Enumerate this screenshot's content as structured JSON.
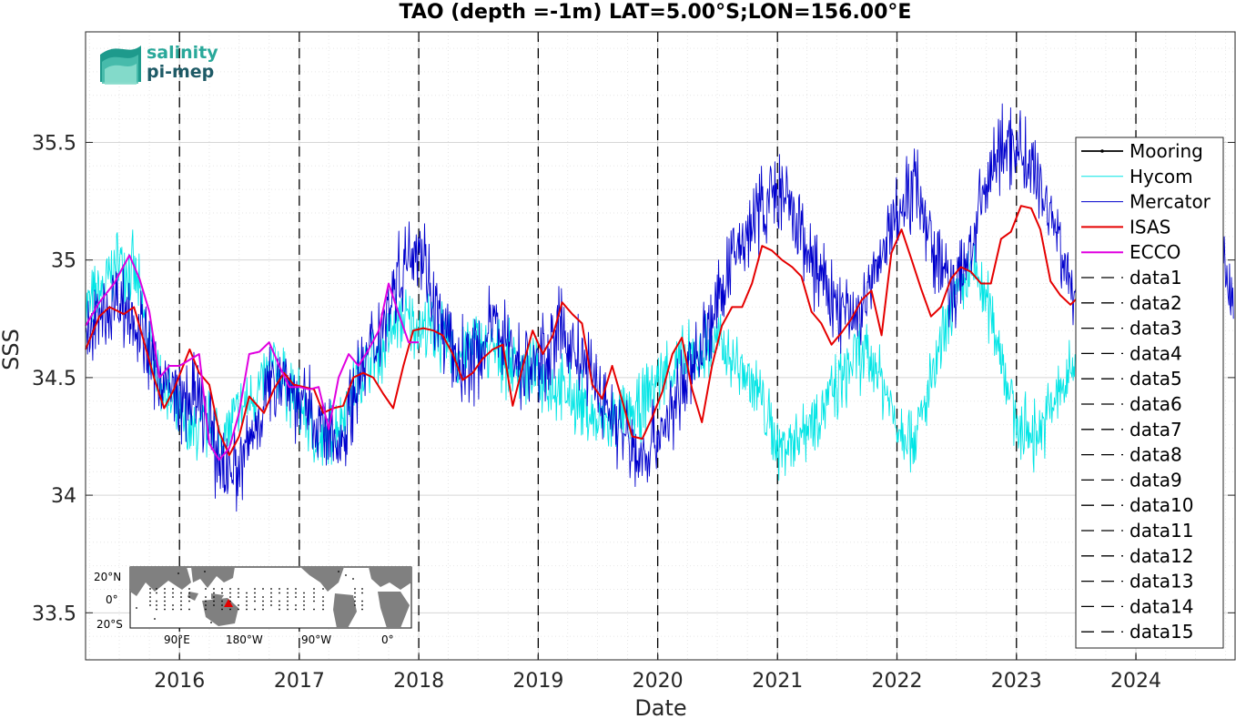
{
  "logo": {
    "line1": "salinity",
    "line2": "pi-mep"
  },
  "inset_map": {
    "lat_labels": [
      "20°N",
      "0°",
      "20°S"
    ],
    "lon_labels": [
      "90°E",
      "180°W",
      "90°W",
      "0°"
    ]
  },
  "chart_data": {
    "type": "line",
    "title": "TAO (depth =-1m) LAT=5.00°S;LON=156.00°E",
    "xlabel": "Date",
    "ylabel": "SSS",
    "xlim": [
      "2015-03-20",
      "2024-10-30"
    ],
    "ylim": [
      33.3,
      35.97
    ],
    "x_ticks": [
      "2016",
      "2017",
      "2018",
      "2019",
      "2020",
      "2021",
      "2022",
      "2023",
      "2024"
    ],
    "y_ticks": [
      33.5,
      34,
      34.5,
      35,
      35.5
    ],
    "grid": true,
    "legend_position": "right",
    "vertical_markers": [
      "2016-01-01",
      "2017-01-01",
      "2018-01-01",
      "2019-01-01",
      "2020-01-01",
      "2021-01-01",
      "2022-01-01",
      "2023-01-01",
      "2024-01-01"
    ],
    "series": [
      {
        "name": "Mooring",
        "color": "#000000",
        "style": "solid-dot",
        "x": [],
        "y": []
      },
      {
        "name": "Hycom",
        "color": "#00e5e5",
        "style": "thin",
        "x": [
          "2015-03-20",
          "2015-05-01",
          "2015-07-01",
          "2015-08-15",
          "2015-09-15",
          "2015-10-15",
          "2015-12-15",
          "2016-02-01",
          "2016-04-01",
          "2016-05-15",
          "2016-07-01",
          "2016-09-01",
          "2016-10-15",
          "2016-12-01",
          "2017-01-15",
          "2017-03-01",
          "2017-05-01",
          "2017-07-01",
          "2017-09-01",
          "2017-11-01",
          "2018-01-01",
          "2018-03-01",
          "2018-05-01",
          "2018-07-01",
          "2018-09-01",
          "2018-11-01",
          "2019-01-01",
          "2019-03-01",
          "2019-05-01",
          "2019-07-01",
          "2019-09-01",
          "2019-11-01",
          "2020-01-01",
          "2020-03-01",
          "2020-05-01",
          "2020-07-01",
          "2020-09-01",
          "2020-11-01",
          "2021-01-01",
          "2021-03-01",
          "2021-05-01",
          "2021-07-01",
          "2021-09-01",
          "2021-11-01",
          "2022-01-01",
          "2022-03-01",
          "2022-05-01",
          "2022-07-01",
          "2022-09-01",
          "2022-11-01",
          "2023-01-01",
          "2023-03-01",
          "2023-05-01",
          "2023-07-15"
        ],
        "y": [
          34.8,
          34.85,
          35.0,
          34.95,
          34.75,
          34.55,
          34.35,
          34.25,
          34.3,
          34.25,
          34.35,
          34.45,
          34.55,
          34.45,
          34.35,
          34.2,
          34.3,
          34.5,
          34.6,
          34.75,
          34.72,
          34.68,
          34.6,
          34.65,
          34.6,
          34.55,
          34.5,
          34.45,
          34.4,
          34.3,
          34.32,
          34.35,
          34.5,
          34.55,
          34.6,
          34.65,
          34.55,
          34.45,
          34.2,
          34.25,
          34.35,
          34.45,
          34.6,
          34.55,
          34.3,
          34.25,
          34.55,
          34.85,
          34.95,
          34.7,
          34.3,
          34.25,
          34.4,
          34.6
        ]
      },
      {
        "name": "Mercator",
        "color": "#0000cd",
        "style": "thin",
        "x": [
          "2015-03-20",
          "2015-05-01",
          "2015-07-01",
          "2015-09-01",
          "2015-11-01",
          "2016-01-01",
          "2016-03-01",
          "2016-05-01",
          "2016-07-01",
          "2016-09-01",
          "2016-11-01",
          "2017-01-01",
          "2017-03-01",
          "2017-05-01",
          "2017-07-01",
          "2017-09-01",
          "2017-11-01",
          "2018-01-01",
          "2018-03-01",
          "2018-05-01",
          "2018-07-01",
          "2018-09-01",
          "2018-11-01",
          "2019-01-01",
          "2019-03-01",
          "2019-05-01",
          "2019-07-01",
          "2019-09-01",
          "2019-11-01",
          "2020-01-01",
          "2020-03-01",
          "2020-05-01",
          "2020-07-01",
          "2020-09-01",
          "2020-11-01",
          "2021-01-01",
          "2021-03-01",
          "2021-05-01",
          "2021-07-01",
          "2021-09-01",
          "2021-11-01",
          "2022-01-01",
          "2022-03-01",
          "2022-05-01",
          "2022-07-01",
          "2022-09-01",
          "2022-11-01",
          "2023-01-01",
          "2023-03-01",
          "2023-05-01",
          "2023-07-01",
          "2023-09-01",
          "2023-11-01",
          "2024-01-01",
          "2024-03-01",
          "2024-05-01",
          "2024-07-01",
          "2024-09-01",
          "2024-10-25"
        ],
        "y": [
          34.65,
          34.75,
          34.85,
          34.7,
          34.5,
          34.4,
          34.4,
          34.15,
          34.1,
          34.35,
          34.55,
          34.4,
          34.3,
          34.2,
          34.5,
          34.7,
          34.95,
          35.1,
          34.75,
          34.55,
          34.6,
          34.75,
          34.55,
          34.55,
          34.7,
          34.6,
          34.45,
          34.3,
          34.15,
          34.25,
          34.4,
          34.6,
          34.8,
          35.05,
          35.2,
          35.3,
          35.15,
          34.95,
          34.8,
          34.75,
          34.95,
          35.2,
          35.35,
          35.0,
          34.85,
          35.15,
          35.45,
          35.5,
          35.35,
          35.15,
          34.8,
          34.7,
          34.9,
          35.1,
          35.0,
          34.9,
          35.1,
          35.3,
          34.75
        ]
      },
      {
        "name": "ISAS",
        "color": "#e50000",
        "style": "thick",
        "x": [
          "2015-03-20",
          "2015-05-01",
          "2015-06-01",
          "2015-07-15",
          "2015-08-15",
          "2015-09-15",
          "2015-10-15",
          "2015-11-15",
          "2015-12-15",
          "2016-02-01",
          "2016-03-01",
          "2016-04-01",
          "2016-05-01",
          "2016-06-01",
          "2016-07-01",
          "2016-08-01",
          "2016-09-15",
          "2016-10-15",
          "2016-11-15",
          "2016-12-15",
          "2017-01-15",
          "2017-02-15",
          "2017-03-15",
          "2017-04-15",
          "2017-05-15",
          "2017-06-15",
          "2017-07-15",
          "2017-08-15",
          "2017-09-15",
          "2017-10-15",
          "2017-11-15",
          "2017-12-15",
          "2018-01-15",
          "2018-02-15",
          "2018-03-15",
          "2018-04-15",
          "2018-05-15",
          "2018-06-15",
          "2018-07-15",
          "2018-08-15",
          "2018-09-15",
          "2018-10-15",
          "2018-11-15",
          "2018-12-15",
          "2019-01-15",
          "2019-02-15",
          "2019-03-15",
          "2019-04-15",
          "2019-05-15",
          "2019-06-15",
          "2019-07-15",
          "2019-08-15",
          "2019-09-15",
          "2019-10-15",
          "2019-11-15",
          "2019-12-15",
          "2020-01-15",
          "2020-02-15",
          "2020-03-15",
          "2020-04-15",
          "2020-05-15",
          "2020-06-15",
          "2020-07-15",
          "2020-08-15",
          "2020-09-15",
          "2020-10-15",
          "2020-11-15",
          "2020-12-15",
          "2021-01-15",
          "2021-02-15",
          "2021-03-15",
          "2021-04-15",
          "2021-05-15",
          "2021-06-15",
          "2021-07-15",
          "2021-08-15",
          "2021-09-15",
          "2021-10-15",
          "2021-11-15",
          "2021-12-15",
          "2022-01-15",
          "2022-02-15",
          "2022-03-15",
          "2022-04-15",
          "2022-05-15",
          "2022-06-15",
          "2022-07-15",
          "2022-08-15",
          "2022-09-15",
          "2022-10-15",
          "2022-11-15",
          "2022-12-15",
          "2023-01-15",
          "2023-02-15",
          "2023-03-15",
          "2023-04-15",
          "2023-05-15",
          "2023-06-15",
          "2023-07-15",
          "2023-08-15"
        ],
        "y": [
          34.62,
          34.76,
          34.8,
          34.77,
          34.8,
          34.65,
          34.5,
          34.37,
          34.45,
          34.62,
          34.52,
          34.47,
          34.27,
          34.17,
          34.25,
          34.42,
          34.35,
          34.45,
          34.52,
          34.47,
          34.46,
          34.45,
          34.35,
          34.37,
          34.38,
          34.5,
          34.52,
          34.5,
          34.43,
          34.37,
          34.55,
          34.7,
          34.71,
          34.7,
          34.68,
          34.6,
          34.49,
          34.52,
          34.58,
          34.62,
          34.64,
          34.38,
          34.55,
          34.7,
          34.6,
          34.68,
          34.82,
          34.77,
          34.73,
          34.47,
          34.41,
          34.55,
          34.4,
          34.25,
          34.24,
          34.33,
          34.44,
          34.6,
          34.67,
          34.45,
          34.31,
          34.55,
          34.72,
          34.8,
          34.8,
          34.9,
          35.06,
          35.04,
          35.0,
          34.97,
          34.93,
          34.78,
          34.73,
          34.64,
          34.69,
          34.75,
          34.83,
          34.87,
          34.68,
          35.03,
          35.13,
          35.0,
          34.88,
          34.76,
          34.8,
          34.92,
          34.97,
          34.95,
          34.9,
          34.9,
          35.09,
          35.12,
          35.23,
          35.22,
          35.13,
          34.91,
          34.85,
          34.81,
          34.85,
          34.82
        ]
      },
      {
        "name": "ECCO",
        "color": "#e000e0",
        "style": "thick",
        "x": [
          "2015-03-20",
          "2015-05-01",
          "2015-06-15",
          "2015-08-01",
          "2015-09-01",
          "2015-10-01",
          "2015-11-01",
          "2015-12-01",
          "2016-01-01",
          "2016-03-01",
          "2016-04-01",
          "2016-05-01",
          "2016-06-01",
          "2016-07-01",
          "2016-08-01",
          "2016-09-01",
          "2016-10-01",
          "2016-11-01",
          "2016-12-01",
          "2017-01-01",
          "2017-02-01",
          "2017-03-01",
          "2017-04-01",
          "2017-05-01",
          "2017-06-01",
          "2017-07-01",
          "2017-08-01",
          "2017-09-01",
          "2017-10-01",
          "2017-11-01",
          "2017-12-01",
          "2018-01-01"
        ],
        "y": [
          34.72,
          34.82,
          34.9,
          35.02,
          34.92,
          34.78,
          34.5,
          34.55,
          34.55,
          34.6,
          34.22,
          34.15,
          34.2,
          34.35,
          34.6,
          34.61,
          34.65,
          34.55,
          34.46,
          34.46,
          34.45,
          34.46,
          34.28,
          34.5,
          34.6,
          34.55,
          34.62,
          34.7,
          34.9,
          34.77,
          34.65,
          34.65
        ]
      },
      {
        "name": "data1",
        "color": "#000000",
        "style": "dashed",
        "x": [],
        "y": []
      },
      {
        "name": "data2",
        "color": "#000000",
        "style": "dashed",
        "x": [],
        "y": []
      },
      {
        "name": "data3",
        "color": "#000000",
        "style": "dashed",
        "x": [],
        "y": []
      },
      {
        "name": "data4",
        "color": "#000000",
        "style": "dashed",
        "x": [],
        "y": []
      },
      {
        "name": "data5",
        "color": "#000000",
        "style": "dashed",
        "x": [],
        "y": []
      },
      {
        "name": "data6",
        "color": "#000000",
        "style": "dashed",
        "x": [],
        "y": []
      },
      {
        "name": "data7",
        "color": "#000000",
        "style": "dashed",
        "x": [],
        "y": []
      },
      {
        "name": "data8",
        "color": "#000000",
        "style": "dashed",
        "x": [],
        "y": []
      },
      {
        "name": "data9",
        "color": "#000000",
        "style": "dashed",
        "x": [],
        "y": []
      },
      {
        "name": "data10",
        "color": "#000000",
        "style": "dashed",
        "x": [],
        "y": []
      },
      {
        "name": "data11",
        "color": "#000000",
        "style": "dashed",
        "x": [],
        "y": []
      },
      {
        "name": "data12",
        "color": "#000000",
        "style": "dashed",
        "x": [],
        "y": []
      },
      {
        "name": "data13",
        "color": "#000000",
        "style": "dashed",
        "x": [],
        "y": []
      },
      {
        "name": "data14",
        "color": "#000000",
        "style": "dashed",
        "x": [],
        "y": []
      },
      {
        "name": "data15",
        "color": "#000000",
        "style": "dashed",
        "x": [],
        "y": []
      }
    ]
  }
}
